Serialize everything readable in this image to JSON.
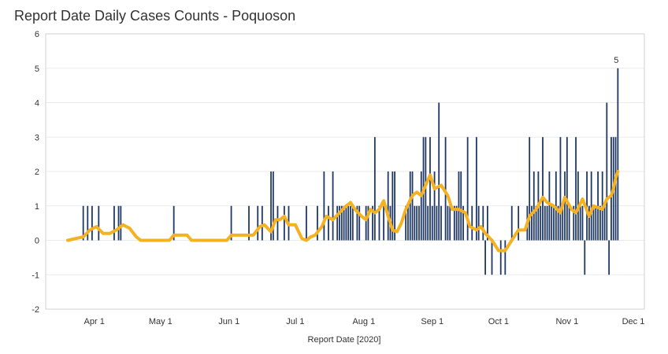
{
  "chart_data": {
    "type": "bar",
    "title": "Report Date Daily Cases Counts - Poquoson",
    "xlabel": "Report Date [2020]",
    "ylabel": "",
    "ylim": [
      -2,
      6
    ],
    "yticks": [
      -2,
      -1,
      0,
      1,
      2,
      3,
      4,
      5,
      6
    ],
    "xlim": [
      "2020-03-10",
      "2020-12-06"
    ],
    "x_ticks": [
      {
        "label": "Apr 1",
        "date": "2020-04-01"
      },
      {
        "label": "May 1",
        "date": "2020-05-01"
      },
      {
        "label": "Jun 1",
        "date": "2020-06-01"
      },
      {
        "label": "Jul 1",
        "date": "2020-07-01"
      },
      {
        "label": "Aug 1",
        "date": "2020-08-01"
      },
      {
        "label": "Sep 1",
        "date": "2020-09-01"
      },
      {
        "label": "Oct 1",
        "date": "2020-10-01"
      },
      {
        "label": "Nov 1",
        "date": "2020-11-01"
      },
      {
        "label": "Dec 1",
        "date": "2020-12-01"
      }
    ],
    "grid": true,
    "annotation": {
      "date": "2020-11-24",
      "value": 5,
      "text": "5"
    },
    "series": [
      {
        "type": "bar",
        "color": "#1f3864",
        "points": [
          [
            "2020-03-27",
            1
          ],
          [
            "2020-03-29",
            1
          ],
          [
            "2020-03-31",
            1
          ],
          [
            "2020-04-03",
            1
          ],
          [
            "2020-04-10",
            1
          ],
          [
            "2020-04-12",
            1
          ],
          [
            "2020-04-13",
            1
          ],
          [
            "2020-05-07",
            1
          ],
          [
            "2020-06-02",
            1
          ],
          [
            "2020-06-10",
            1
          ],
          [
            "2020-06-14",
            1
          ],
          [
            "2020-06-16",
            1
          ],
          [
            "2020-06-20",
            2
          ],
          [
            "2020-06-21",
            2
          ],
          [
            "2020-06-23",
            1
          ],
          [
            "2020-06-26",
            1
          ],
          [
            "2020-06-28",
            1
          ],
          [
            "2020-07-06",
            1
          ],
          [
            "2020-07-11",
            1
          ],
          [
            "2020-07-14",
            2
          ],
          [
            "2020-07-16",
            1
          ],
          [
            "2020-07-18",
            2
          ],
          [
            "2020-07-20",
            1
          ],
          [
            "2020-07-21",
            1
          ],
          [
            "2020-07-22",
            1
          ],
          [
            "2020-07-23",
            1
          ],
          [
            "2020-07-24",
            1
          ],
          [
            "2020-07-25",
            1
          ],
          [
            "2020-07-26",
            1
          ],
          [
            "2020-07-27",
            1
          ],
          [
            "2020-07-29",
            1
          ],
          [
            "2020-07-30",
            1
          ],
          [
            "2020-08-02",
            1
          ],
          [
            "2020-08-03",
            1
          ],
          [
            "2020-08-05",
            1
          ],
          [
            "2020-08-06",
            3
          ],
          [
            "2020-08-08",
            1
          ],
          [
            "2020-08-10",
            1
          ],
          [
            "2020-08-12",
            2
          ],
          [
            "2020-08-13",
            1
          ],
          [
            "2020-08-14",
            2
          ],
          [
            "2020-08-15",
            2
          ],
          [
            "2020-08-20",
            1
          ],
          [
            "2020-08-21",
            1
          ],
          [
            "2020-08-22",
            2
          ],
          [
            "2020-08-23",
            2
          ],
          [
            "2020-08-24",
            1
          ],
          [
            "2020-08-25",
            1
          ],
          [
            "2020-08-26",
            1
          ],
          [
            "2020-08-27",
            2
          ],
          [
            "2020-08-28",
            3
          ],
          [
            "2020-08-29",
            3
          ],
          [
            "2020-08-30",
            1
          ],
          [
            "2020-08-31",
            3
          ],
          [
            "2020-09-01",
            1
          ],
          [
            "2020-09-02",
            2
          ],
          [
            "2020-09-03",
            1
          ],
          [
            "2020-09-04",
            4
          ],
          [
            "2020-09-05",
            1
          ],
          [
            "2020-09-07",
            3
          ],
          [
            "2020-09-08",
            1
          ],
          [
            "2020-09-09",
            1
          ],
          [
            "2020-09-11",
            1
          ],
          [
            "2020-09-12",
            1
          ],
          [
            "2020-09-13",
            2
          ],
          [
            "2020-09-14",
            2
          ],
          [
            "2020-09-15",
            1
          ],
          [
            "2020-09-17",
            3
          ],
          [
            "2020-09-19",
            1
          ],
          [
            "2020-09-21",
            3
          ],
          [
            "2020-09-22",
            1
          ],
          [
            "2020-09-24",
            1
          ],
          [
            "2020-09-25",
            -1
          ],
          [
            "2020-09-26",
            1
          ],
          [
            "2020-09-28",
            -1
          ],
          [
            "2020-10-02",
            -1
          ],
          [
            "2020-10-04",
            -1
          ],
          [
            "2020-10-07",
            1
          ],
          [
            "2020-10-10",
            1
          ],
          [
            "2020-10-14",
            1
          ],
          [
            "2020-10-15",
            3
          ],
          [
            "2020-10-16",
            1
          ],
          [
            "2020-10-17",
            2
          ],
          [
            "2020-10-18",
            1
          ],
          [
            "2020-10-19",
            2
          ],
          [
            "2020-10-20",
            1
          ],
          [
            "2020-10-21",
            3
          ],
          [
            "2020-10-22",
            1
          ],
          [
            "2020-10-23",
            1
          ],
          [
            "2020-10-24",
            2
          ],
          [
            "2020-10-25",
            1
          ],
          [
            "2020-10-26",
            1
          ],
          [
            "2020-10-27",
            2
          ],
          [
            "2020-10-28",
            1
          ],
          [
            "2020-10-29",
            3
          ],
          [
            "2020-10-30",
            1
          ],
          [
            "2020-10-31",
            2
          ],
          [
            "2020-11-01",
            3
          ],
          [
            "2020-11-02",
            1
          ],
          [
            "2020-11-04",
            1
          ],
          [
            "2020-11-05",
            3
          ],
          [
            "2020-11-06",
            2
          ],
          [
            "2020-11-07",
            1
          ],
          [
            "2020-11-08",
            1
          ],
          [
            "2020-11-09",
            -1
          ],
          [
            "2020-11-10",
            2
          ],
          [
            "2020-11-11",
            1
          ],
          [
            "2020-11-12",
            2
          ],
          [
            "2020-11-13",
            1
          ],
          [
            "2020-11-14",
            1
          ],
          [
            "2020-11-15",
            2
          ],
          [
            "2020-11-16",
            1
          ],
          [
            "2020-11-17",
            2
          ],
          [
            "2020-11-18",
            1
          ],
          [
            "2020-11-19",
            4
          ],
          [
            "2020-11-20",
            -1
          ],
          [
            "2020-11-21",
            3
          ],
          [
            "2020-11-22",
            3
          ],
          [
            "2020-11-23",
            3
          ],
          [
            "2020-11-24",
            5
          ]
        ]
      },
      {
        "type": "line",
        "color": "#f4b223",
        "points": [
          [
            "2020-03-20",
            0
          ],
          [
            "2020-03-27",
            0.1
          ],
          [
            "2020-03-30",
            0.3
          ],
          [
            "2020-04-02",
            0.4
          ],
          [
            "2020-04-05",
            0.2
          ],
          [
            "2020-04-08",
            0.2
          ],
          [
            "2020-04-11",
            0.3
          ],
          [
            "2020-04-14",
            0.45
          ],
          [
            "2020-04-17",
            0.35
          ],
          [
            "2020-04-20",
            0.1
          ],
          [
            "2020-04-22",
            0
          ],
          [
            "2020-05-05",
            0
          ],
          [
            "2020-05-07",
            0.15
          ],
          [
            "2020-05-13",
            0.15
          ],
          [
            "2020-05-15",
            0
          ],
          [
            "2020-05-31",
            0
          ],
          [
            "2020-06-02",
            0.15
          ],
          [
            "2020-06-12",
            0.15
          ],
          [
            "2020-06-15",
            0.4
          ],
          [
            "2020-06-17",
            0.45
          ],
          [
            "2020-06-20",
            0.25
          ],
          [
            "2020-06-22",
            0.6
          ],
          [
            "2020-06-24",
            0.6
          ],
          [
            "2020-06-26",
            0.7
          ],
          [
            "2020-06-28",
            0.45
          ],
          [
            "2020-07-01",
            0.45
          ],
          [
            "2020-07-04",
            0.05
          ],
          [
            "2020-07-06",
            0
          ],
          [
            "2020-07-08",
            0.1
          ],
          [
            "2020-07-10",
            0.15
          ],
          [
            "2020-07-13",
            0.4
          ],
          [
            "2020-07-15",
            0.7
          ],
          [
            "2020-07-18",
            0.6
          ],
          [
            "2020-07-21",
            0.8
          ],
          [
            "2020-07-24",
            1.0
          ],
          [
            "2020-07-26",
            1.1
          ],
          [
            "2020-07-28",
            0.9
          ],
          [
            "2020-07-31",
            0.7
          ],
          [
            "2020-08-02",
            0.6
          ],
          [
            "2020-08-04",
            0.9
          ],
          [
            "2020-08-06",
            0.8
          ],
          [
            "2020-08-08",
            0.9
          ],
          [
            "2020-08-10",
            1.15
          ],
          [
            "2020-08-12",
            0.7
          ],
          [
            "2020-08-14",
            0.3
          ],
          [
            "2020-08-16",
            0.25
          ],
          [
            "2020-08-18",
            0.5
          ],
          [
            "2020-08-20",
            0.9
          ],
          [
            "2020-08-23",
            1.3
          ],
          [
            "2020-08-25",
            1.4
          ],
          [
            "2020-08-27",
            1.3
          ],
          [
            "2020-08-29",
            1.6
          ],
          [
            "2020-08-31",
            1.9
          ],
          [
            "2020-09-02",
            1.5
          ],
          [
            "2020-09-05",
            1.6
          ],
          [
            "2020-09-08",
            1.3
          ],
          [
            "2020-09-10",
            0.9
          ],
          [
            "2020-09-13",
            0.9
          ],
          [
            "2020-09-16",
            0.8
          ],
          [
            "2020-09-18",
            0.4
          ],
          [
            "2020-09-21",
            0.3
          ],
          [
            "2020-09-23",
            0.4
          ],
          [
            "2020-09-25",
            0.2
          ],
          [
            "2020-09-28",
            0
          ],
          [
            "2020-10-01",
            -0.3
          ],
          [
            "2020-10-04",
            -0.3
          ],
          [
            "2020-10-07",
            0
          ],
          [
            "2020-10-10",
            0.3
          ],
          [
            "2020-10-13",
            0.3
          ],
          [
            "2020-10-15",
            0.7
          ],
          [
            "2020-10-18",
            0.9
          ],
          [
            "2020-10-21",
            1.25
          ],
          [
            "2020-10-23",
            1.1
          ],
          [
            "2020-10-26",
            1.0
          ],
          [
            "2020-10-29",
            0.8
          ],
          [
            "2020-10-31",
            1.25
          ],
          [
            "2020-11-03",
            0.9
          ],
          [
            "2020-11-05",
            0.8
          ],
          [
            "2020-11-08",
            1.2
          ],
          [
            "2020-11-11",
            0.7
          ],
          [
            "2020-11-13",
            1.0
          ],
          [
            "2020-11-15",
            0.95
          ],
          [
            "2020-11-17",
            0.9
          ],
          [
            "2020-11-19",
            1.2
          ],
          [
            "2020-11-21",
            1.3
          ],
          [
            "2020-11-22",
            1.5
          ],
          [
            "2020-11-23",
            1.8
          ],
          [
            "2020-11-24",
            2.0
          ]
        ]
      }
    ]
  }
}
